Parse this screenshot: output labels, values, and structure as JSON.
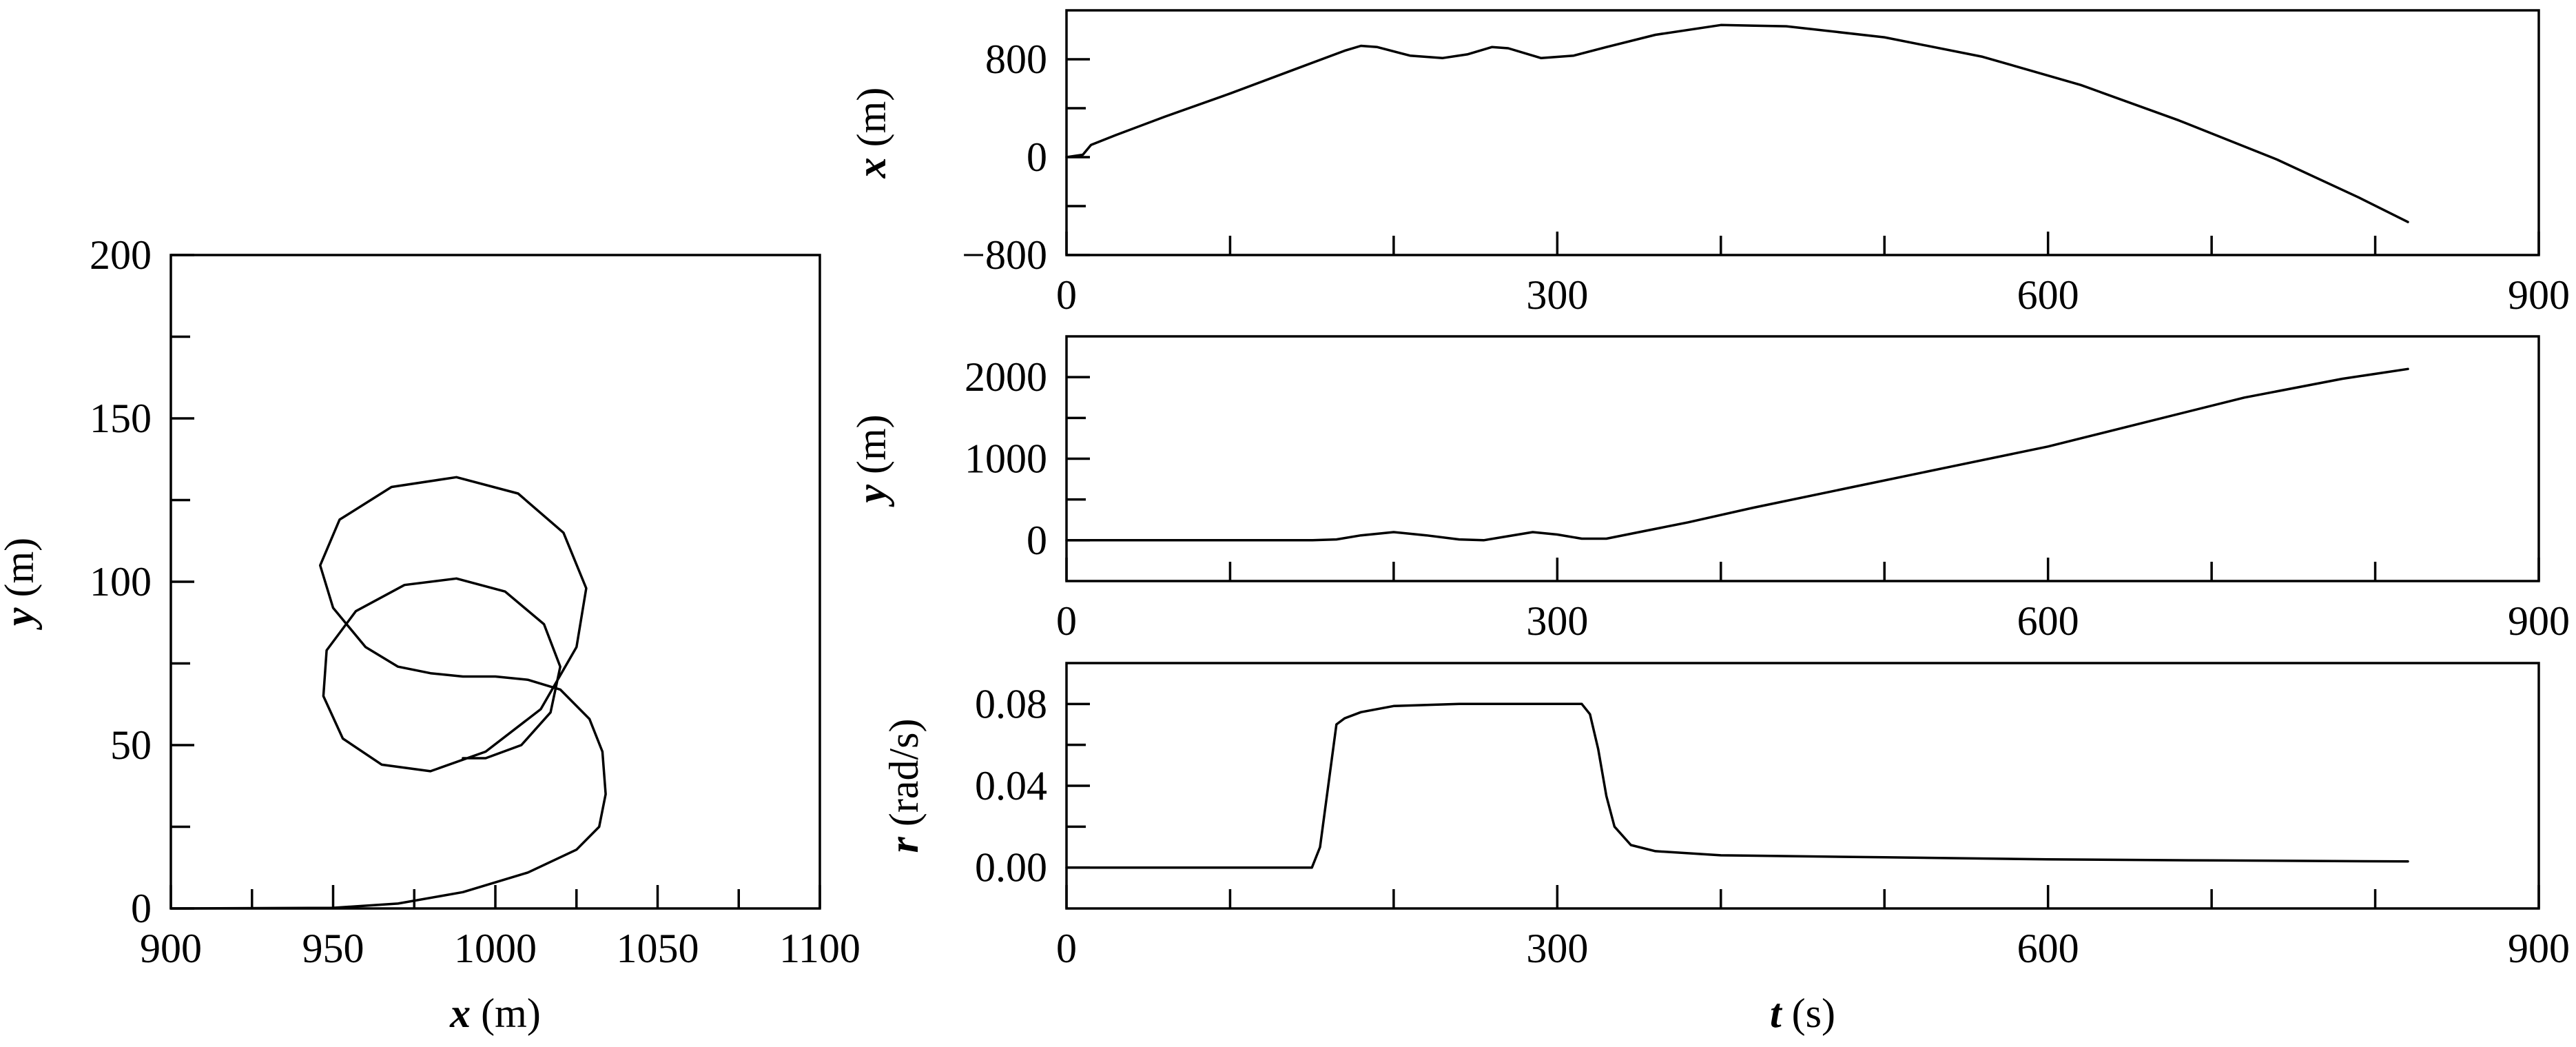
{
  "chart_data": [
    {
      "id": "traj",
      "type": "line",
      "xlabel": {
        "sym": "x",
        "unit": " (m)"
      },
      "ylabel": {
        "sym": "y",
        "unit": " (m)"
      },
      "xlim": [
        900,
        1100
      ],
      "ylim": [
        0,
        200
      ],
      "xticks": [
        900,
        950,
        1000,
        1050,
        1100
      ],
      "xticklabels": [
        "900",
        "950",
        "1000",
        "1050",
        "1100"
      ],
      "xminor": [
        925,
        975,
        1025,
        1075
      ],
      "yticks": [
        0,
        50,
        100,
        150,
        200
      ],
      "yticklabels": [
        "0",
        "50",
        "100",
        "150",
        "200"
      ],
      "yminor": [
        25,
        75,
        125,
        175
      ],
      "series": [
        {
          "points": [
            [
              900,
              0
            ],
            [
              950,
              0.2
            ],
            [
              970,
              1.5
            ],
            [
              990,
              5
            ],
            [
              1010,
              11
            ],
            [
              1025,
              18
            ],
            [
              1032,
              25
            ],
            [
              1034,
              35
            ],
            [
              1033,
              48
            ],
            [
              1029,
              58
            ],
            [
              1020,
              67
            ],
            [
              1010,
              70
            ],
            [
              1000,
              71
            ],
            [
              990,
              71
            ],
            [
              980,
              72
            ],
            [
              970,
              74
            ],
            [
              960,
              80
            ],
            [
              950,
              92
            ],
            [
              946,
              105
            ],
            [
              952,
              119
            ],
            [
              968,
              129
            ],
            [
              988,
              132
            ],
            [
              1007,
              127
            ],
            [
              1021,
              115
            ],
            [
              1028,
              98
            ],
            [
              1025,
              80
            ],
            [
              1014,
              61
            ],
            [
              997,
              48
            ],
            [
              980,
              42
            ],
            [
              965,
              44
            ],
            [
              953,
              52
            ],
            [
              947,
              65
            ],
            [
              948,
              79
            ],
            [
              957,
              91
            ],
            [
              972,
              99
            ],
            [
              988,
              101
            ],
            [
              1003,
              97
            ],
            [
              1015,
              87
            ],
            [
              1020,
              74
            ],
            [
              1017,
              60
            ],
            [
              1008,
              50
            ],
            [
              997,
              46
            ],
            [
              990,
              46
            ]
          ]
        }
      ]
    },
    {
      "id": "xt",
      "type": "line",
      "xlabel": null,
      "ylabel": {
        "sym": "x",
        "unit": " (m)"
      },
      "xlim": [
        0,
        900
      ],
      "ylim": [
        -800,
        1200
      ],
      "xticks": [
        0,
        300,
        600,
        900
      ],
      "xticklabels": [
        "0",
        "300",
        "600",
        "900"
      ],
      "xminor": [
        100,
        200,
        400,
        500,
        700,
        800
      ],
      "yticks": [
        -800,
        0,
        800
      ],
      "yticklabels": [
        "−800",
        "0",
        "800"
      ],
      "yminor": [
        -400,
        400
      ],
      "series": [
        {
          "points": [
            [
              0,
              0
            ],
            [
              10,
              20
            ],
            [
              15,
              100
            ],
            [
              30,
              180
            ],
            [
              60,
              330
            ],
            [
              100,
              520
            ],
            [
              140,
              720
            ],
            [
              170,
              870
            ],
            [
              180,
              910
            ],
            [
              190,
              900
            ],
            [
              210,
              830
            ],
            [
              230,
              810
            ],
            [
              245,
              840
            ],
            [
              260,
              900
            ],
            [
              270,
              890
            ],
            [
              290,
              810
            ],
            [
              310,
              830
            ],
            [
              330,
              900
            ],
            [
              360,
              1000
            ],
            [
              400,
              1080
            ],
            [
              440,
              1070
            ],
            [
              500,
              980
            ],
            [
              560,
              820
            ],
            [
              620,
              590
            ],
            [
              680,
              300
            ],
            [
              740,
              -20
            ],
            [
              790,
              -330
            ],
            [
              820,
              -530
            ]
          ]
        }
      ]
    },
    {
      "id": "yt",
      "type": "line",
      "xlabel": null,
      "ylabel": {
        "sym": "y",
        "unit": " (m)"
      },
      "xlim": [
        0,
        900
      ],
      "ylim": [
        -500,
        2500
      ],
      "xticks": [
        0,
        300,
        600,
        900
      ],
      "xticklabels": [
        "0",
        "300",
        "600",
        "900"
      ],
      "xminor": [
        100,
        200,
        400,
        500,
        700,
        800
      ],
      "yticks": [
        0,
        1000,
        2000
      ],
      "yticklabels": [
        "0",
        "1000",
        "2000"
      ],
      "yminor": [
        500,
        1500
      ],
      "series": [
        {
          "points": [
            [
              0,
              0
            ],
            [
              150,
              0
            ],
            [
              165,
              10
            ],
            [
              180,
              60
            ],
            [
              200,
              100
            ],
            [
              220,
              60
            ],
            [
              240,
              10
            ],
            [
              255,
              0
            ],
            [
              270,
              50
            ],
            [
              285,
              100
            ],
            [
              300,
              70
            ],
            [
              315,
              20
            ],
            [
              330,
              20
            ],
            [
              350,
              100
            ],
            [
              380,
              220
            ],
            [
              420,
              400
            ],
            [
              480,
              650
            ],
            [
              540,
              900
            ],
            [
              600,
              1150
            ],
            [
              660,
              1450
            ],
            [
              720,
              1750
            ],
            [
              780,
              1980
            ],
            [
              820,
              2100
            ]
          ]
        }
      ]
    },
    {
      "id": "rt",
      "type": "line",
      "xlabel": {
        "sym": "t",
        "unit": " (s)"
      },
      "ylabel": {
        "sym": "r",
        "unit": " (rad/s)"
      },
      "xlim": [
        0,
        900
      ],
      "ylim": [
        -0.02,
        0.1
      ],
      "xticks": [
        0,
        300,
        600,
        900
      ],
      "xticklabels": [
        "0",
        "300",
        "600",
        "900"
      ],
      "xminor": [
        100,
        200,
        400,
        500,
        700,
        800
      ],
      "yticks": [
        0.0,
        0.04,
        0.08
      ],
      "yticklabels": [
        "0.00",
        "0.04",
        "0.08"
      ],
      "yminor": [
        0.02,
        0.06
      ],
      "series": [
        {
          "points": [
            [
              0,
              0
            ],
            [
              150,
              0
            ],
            [
              155,
              0.01
            ],
            [
              160,
              0.04
            ],
            [
              165,
              0.07
            ],
            [
              170,
              0.073
            ],
            [
              180,
              0.076
            ],
            [
              200,
              0.079
            ],
            [
              240,
              0.08
            ],
            [
              315,
              0.08
            ],
            [
              320,
              0.075
            ],
            [
              325,
              0.058
            ],
            [
              330,
              0.035
            ],
            [
              335,
              0.02
            ],
            [
              345,
              0.011
            ],
            [
              360,
              0.008
            ],
            [
              400,
              0.006
            ],
            [
              500,
              0.005
            ],
            [
              600,
              0.004
            ],
            [
              700,
              0.0035
            ],
            [
              820,
              0.003
            ]
          ]
        }
      ]
    }
  ]
}
